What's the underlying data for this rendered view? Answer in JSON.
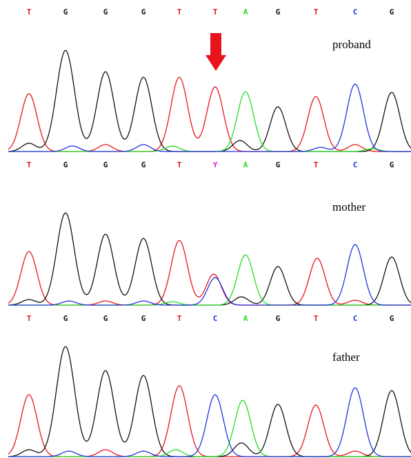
{
  "panels": [
    {
      "label": "proband",
      "bases": [
        "T",
        "G",
        "G",
        "G",
        "T",
        "T",
        "A",
        "G",
        "T",
        "C",
        "G"
      ]
    },
    {
      "label": "mother",
      "bases": [
        "T",
        "G",
        "G",
        "G",
        "T",
        "Y",
        "A",
        "G",
        "T",
        "C",
        "G"
      ]
    },
    {
      "label": "father",
      "bases": [
        "T",
        "G",
        "G",
        "G",
        "T",
        "C",
        "A",
        "G",
        "T",
        "C",
        "G"
      ]
    }
  ]
}
